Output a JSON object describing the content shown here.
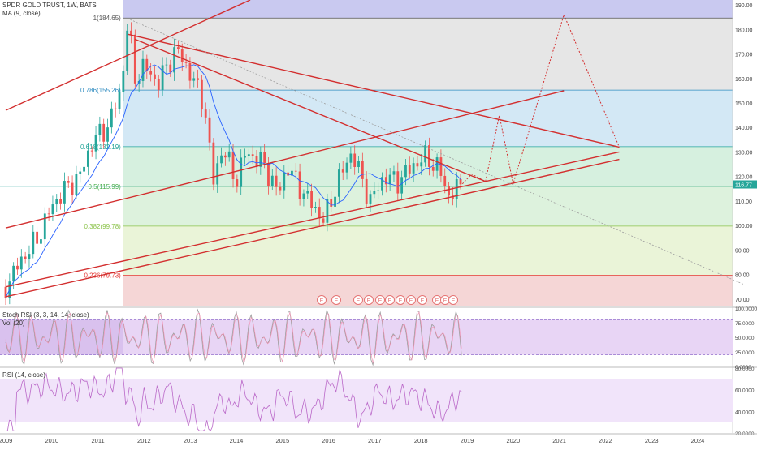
{
  "chart_data": [
    {
      "type": "candlestick",
      "title": "SPDR GOLD TRUST, 1W, BATS",
      "indicator": "MA (9, close)",
      "x_ticks": [
        "2009",
        "2010",
        "2011",
        "2012",
        "2013",
        "2014",
        "2015",
        "2016",
        "2017",
        "2018",
        "2019",
        "2020",
        "2021",
        "2022",
        "2023",
        "2024"
      ],
      "y_ticks": [
        "190.00",
        "180.00",
        "170.00",
        "160.00",
        "150.00",
        "140.00",
        "130.00",
        "120.00",
        "110.00",
        "100.00",
        "90.00",
        "80.00",
        "70.00"
      ],
      "ylim": [
        67,
        192
      ],
      "last_price": "116.77",
      "fib_levels": [
        {
          "label": "1(184.65)",
          "value": 184.65,
          "color": "#555555"
        },
        {
          "label": "0.786(155.26)",
          "value": 155.26,
          "color": "#2e8bc0"
        },
        {
          "label": "0.618(132.19)",
          "value": 132.19,
          "color": "#26a69a"
        },
        {
          "label": "0.5(115.99)",
          "value": 115.99,
          "color": "#4caf50"
        },
        {
          "label": "0.382(99.78)",
          "value": 99.78,
          "color": "#8bc34a"
        },
        {
          "label": "0.236(79.73)",
          "value": 79.73,
          "color": "#e53935"
        }
      ],
      "events": [
        "E",
        "E",
        "E",
        "E",
        "E",
        "E",
        "E",
        "E",
        "E",
        "E",
        "E",
        "E"
      ],
      "price_path": [
        {
          "x": 2009.0,
          "y": 75
        },
        {
          "x": 2009.3,
          "y": 85
        },
        {
          "x": 2009.7,
          "y": 95
        },
        {
          "x": 2010.0,
          "y": 108
        },
        {
          "x": 2010.3,
          "y": 115
        },
        {
          "x": 2010.6,
          "y": 120
        },
        {
          "x": 2010.9,
          "y": 135
        },
        {
          "x": 2011.2,
          "y": 140
        },
        {
          "x": 2011.5,
          "y": 155
        },
        {
          "x": 2011.65,
          "y": 184
        },
        {
          "x": 2011.8,
          "y": 160
        },
        {
          "x": 2012.0,
          "y": 165
        },
        {
          "x": 2012.3,
          "y": 158
        },
        {
          "x": 2012.7,
          "y": 172
        },
        {
          "x": 2013.0,
          "y": 162
        },
        {
          "x": 2013.3,
          "y": 150
        },
        {
          "x": 2013.5,
          "y": 118
        },
        {
          "x": 2013.7,
          "y": 132
        },
        {
          "x": 2014.0,
          "y": 118
        },
        {
          "x": 2014.2,
          "y": 130
        },
        {
          "x": 2014.6,
          "y": 125
        },
        {
          "x": 2014.9,
          "y": 113
        },
        {
          "x": 2015.1,
          "y": 124
        },
        {
          "x": 2015.5,
          "y": 112
        },
        {
          "x": 2015.9,
          "y": 102
        },
        {
          "x": 2016.2,
          "y": 118
        },
        {
          "x": 2016.5,
          "y": 130
        },
        {
          "x": 2016.9,
          "y": 110
        },
        {
          "x": 2017.2,
          "y": 120
        },
        {
          "x": 2017.5,
          "y": 118
        },
        {
          "x": 2017.8,
          "y": 124
        },
        {
          "x": 2018.1,
          "y": 128
        },
        {
          "x": 2018.4,
          "y": 123
        },
        {
          "x": 2018.6,
          "y": 112
        },
        {
          "x": 2018.9,
          "y": 117
        }
      ]
    },
    {
      "type": "line",
      "title": "Stoch RSI (3, 3, 14, 14, close)",
      "secondary_label": "Vol (20)",
      "y_ticks": [
        "100.0000",
        "75.0000",
        "50.0000",
        "25.0000",
        "0.0000"
      ],
      "ylim": [
        0,
        100
      ],
      "band": [
        20,
        80
      ]
    },
    {
      "type": "line",
      "title": "RSI (14, close)",
      "y_ticks": [
        "80.0000",
        "60.0000",
        "40.0000",
        "20.0000"
      ],
      "ylim": [
        20,
        80
      ],
      "band": [
        30,
        70
      ]
    }
  ]
}
